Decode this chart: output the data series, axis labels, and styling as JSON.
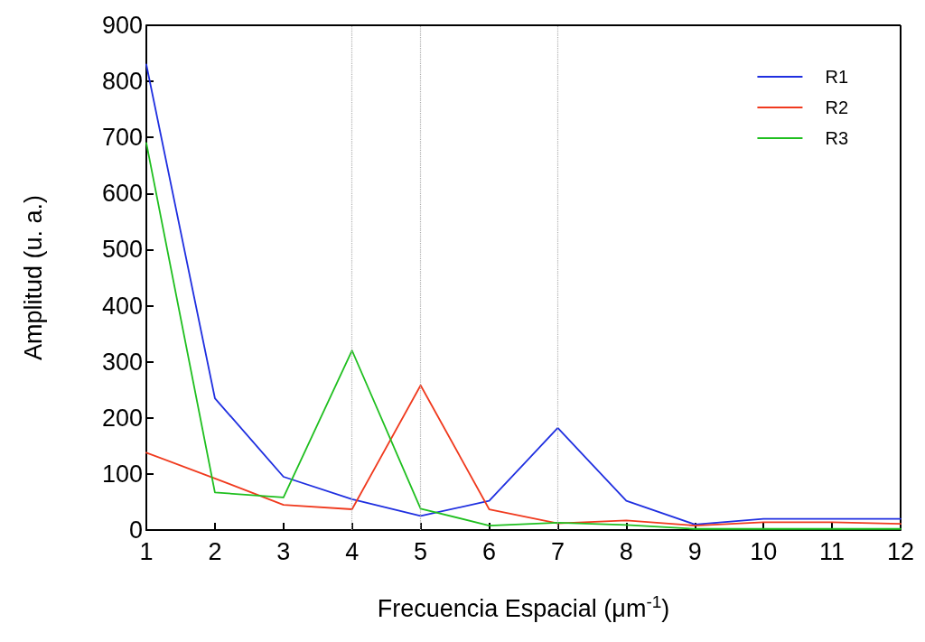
{
  "chart_data": {
    "type": "line",
    "xlabel": "Frecuencia Espacial (μm$^{-1}$)",
    "ylabel": "Amplitud (u. a.)",
    "x": [
      1,
      2,
      3,
      4,
      5,
      6,
      7,
      8,
      9,
      10,
      11,
      12
    ],
    "series": [
      {
        "name": "R1",
        "color": "#1f2fe0",
        "values": [
          830,
          235,
          95,
          55,
          25,
          52,
          182,
          52,
          10,
          20,
          20,
          20
        ]
      },
      {
        "name": "R2",
        "color": "#f03a1e",
        "values": [
          138,
          92,
          45,
          37,
          258,
          37,
          12,
          17,
          8,
          14,
          14,
          11
        ]
      },
      {
        "name": "R3",
        "color": "#1fbf1f",
        "values": [
          690,
          67,
          58,
          320,
          38,
          8,
          13,
          9,
          2,
          2,
          2,
          2
        ]
      }
    ],
    "xlim": [
      1,
      12
    ],
    "xticks": [
      1,
      2,
      3,
      4,
      5,
      6,
      7,
      8,
      9,
      10,
      11,
      12
    ],
    "ylim": [
      0,
      900
    ],
    "yticks": [
      0,
      100,
      200,
      300,
      400,
      500,
      600,
      700,
      800,
      900
    ],
    "ref_lines": [
      {
        "axis": "x",
        "value": 4,
        "color": "#b0b0b0",
        "line_style": "dotted"
      },
      {
        "axis": "x",
        "value": 5,
        "color": "#b0b0b0",
        "line_style": "dotted"
      },
      {
        "axis": "x",
        "value": 7,
        "color": "#b0b0b0",
        "line_style": "dotted"
      }
    ],
    "grid": false,
    "legend": "top right",
    "marker": "none",
    "line_style": "solid"
  }
}
